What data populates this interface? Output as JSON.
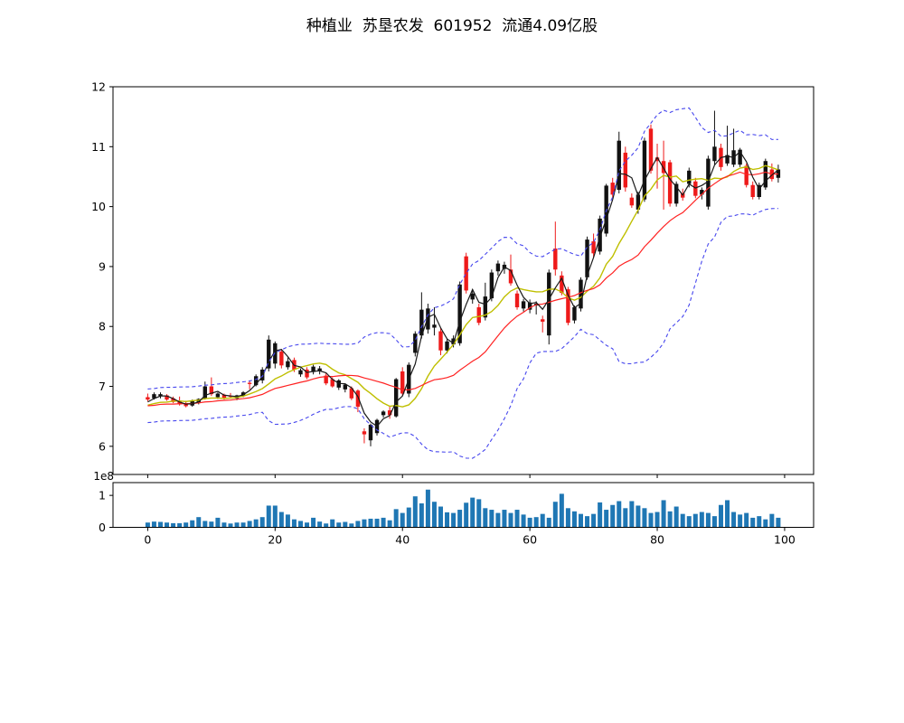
{
  "title": "种植业  苏垦农发  601952  流通4.09亿股",
  "chart_data": {
    "type": "candlestick+volume",
    "title": "种植业  苏垦农发  601952  流通4.09亿股",
    "x_ticks": [
      0,
      20,
      40,
      60,
      80,
      100
    ],
    "y_ticks": [
      6,
      7,
      8,
      9,
      10,
      11,
      12
    ],
    "ylim": [
      5.53,
      12
    ],
    "xlim": [
      -5.45,
      104.55
    ],
    "volume_y_ticks": [
      0,
      1
    ],
    "volume_ylim_1e8": [
      0,
      1.4
    ],
    "volume_offset_label": "1e8",
    "legend_position": "none",
    "grid": false,
    "candle_up_rule": "black body = close >= open, red body = close < open",
    "ohlc": [
      [
        6.82,
        6.88,
        6.75,
        6.78
      ],
      [
        6.8,
        6.9,
        6.78,
        6.87
      ],
      [
        6.84,
        6.9,
        6.8,
        6.87
      ],
      [
        6.85,
        6.87,
        6.76,
        6.78
      ],
      [
        6.8,
        6.83,
        6.72,
        6.74
      ],
      [
        6.76,
        6.83,
        6.68,
        6.7
      ],
      [
        6.72,
        6.76,
        6.65,
        6.67
      ],
      [
        6.68,
        6.78,
        6.66,
        6.76
      ],
      [
        6.72,
        6.8,
        6.7,
        6.79
      ],
      [
        6.8,
        7.08,
        6.78,
        7.0
      ],
      [
        7.0,
        7.15,
        6.84,
        6.87
      ],
      [
        6.82,
        6.9,
        6.79,
        6.88
      ],
      [
        6.86,
        6.88,
        6.78,
        6.81
      ],
      [
        6.84,
        6.89,
        6.8,
        6.83
      ],
      [
        6.8,
        6.86,
        6.77,
        6.85
      ],
      [
        6.84,
        6.92,
        6.82,
        6.9
      ],
      [
        7.06,
        7.1,
        6.95,
        7.04
      ],
      [
        7.02,
        7.2,
        7.0,
        7.17
      ],
      [
        7.1,
        7.32,
        7.05,
        7.28
      ],
      [
        7.3,
        7.85,
        7.25,
        7.78
      ],
      [
        7.38,
        7.75,
        7.3,
        7.72
      ],
      [
        7.58,
        7.62,
        7.3,
        7.35
      ],
      [
        7.32,
        7.48,
        7.28,
        7.42
      ],
      [
        7.44,
        7.48,
        7.24,
        7.28
      ],
      [
        7.2,
        7.3,
        7.16,
        7.27
      ],
      [
        7.28,
        7.32,
        7.12,
        7.15
      ],
      [
        7.24,
        7.36,
        7.2,
        7.33
      ],
      [
        7.25,
        7.34,
        7.2,
        7.3
      ],
      [
        7.18,
        7.22,
        7.02,
        7.05
      ],
      [
        7.12,
        7.15,
        6.98,
        7.0
      ],
      [
        6.98,
        7.12,
        6.94,
        7.1
      ],
      [
        6.95,
        7.05,
        6.9,
        7.03
      ],
      [
        6.97,
        7.0,
        6.77,
        6.8
      ],
      [
        6.93,
        6.95,
        6.57,
        6.66
      ],
      [
        6.25,
        6.3,
        6.05,
        6.2
      ],
      [
        6.1,
        6.38,
        6.0,
        6.36
      ],
      [
        6.22,
        6.46,
        6.18,
        6.44
      ],
      [
        6.52,
        6.6,
        6.48,
        6.58
      ],
      [
        6.6,
        6.66,
        6.46,
        6.52
      ],
      [
        6.5,
        7.14,
        6.48,
        7.12
      ],
      [
        7.25,
        7.32,
        6.84,
        6.88
      ],
      [
        6.88,
        7.4,
        6.82,
        7.36
      ],
      [
        7.56,
        7.92,
        7.5,
        7.88
      ],
      [
        7.85,
        8.57,
        7.8,
        8.28
      ],
      [
        7.95,
        8.38,
        7.88,
        8.3
      ],
      [
        7.98,
        8.32,
        7.85,
        8.03
      ],
      [
        7.92,
        7.98,
        7.52,
        7.6
      ],
      [
        7.6,
        7.8,
        7.55,
        7.75
      ],
      [
        7.7,
        7.85,
        7.65,
        7.8
      ],
      [
        7.72,
        8.75,
        7.68,
        8.7
      ],
      [
        9.17,
        9.23,
        8.55,
        8.6
      ],
      [
        8.45,
        8.62,
        8.38,
        8.55
      ],
      [
        8.32,
        8.38,
        8.02,
        8.06
      ],
      [
        8.15,
        8.73,
        8.1,
        8.5
      ],
      [
        8.47,
        8.95,
        8.42,
        8.9
      ],
      [
        8.92,
        9.1,
        8.85,
        9.05
      ],
      [
        8.96,
        9.08,
        8.88,
        9.03
      ],
      [
        8.95,
        9.2,
        8.68,
        8.72
      ],
      [
        8.55,
        8.6,
        8.28,
        8.32
      ],
      [
        8.3,
        8.46,
        8.25,
        8.42
      ],
      [
        8.28,
        8.45,
        8.22,
        8.4
      ],
      [
        8.35,
        8.42,
        8.2,
        8.38
      ],
      [
        8.12,
        8.18,
        7.9,
        8.08
      ],
      [
        7.85,
        8.95,
        7.7,
        8.9
      ],
      [
        9.3,
        9.75,
        8.85,
        8.95
      ],
      [
        8.85,
        8.92,
        8.52,
        8.56
      ],
      [
        8.62,
        8.66,
        8.02,
        8.06
      ],
      [
        8.1,
        8.35,
        8.05,
        8.32
      ],
      [
        8.3,
        8.82,
        8.25,
        8.78
      ],
      [
        8.82,
        9.5,
        8.78,
        9.45
      ],
      [
        9.42,
        9.55,
        9.15,
        9.22
      ],
      [
        9.25,
        9.85,
        9.2,
        9.8
      ],
      [
        9.55,
        10.38,
        9.5,
        10.35
      ],
      [
        10.4,
        10.48,
        10.15,
        10.2
      ],
      [
        10.28,
        11.25,
        10.22,
        11.1
      ],
      [
        10.9,
        11.0,
        10.25,
        10.32
      ],
      [
        10.15,
        10.22,
        9.98,
        10.02
      ],
      [
        9.95,
        10.25,
        9.88,
        10.2
      ],
      [
        10.12,
        11.15,
        10.08,
        11.1
      ],
      [
        11.3,
        11.37,
        10.55,
        10.6
      ],
      [
        10.82,
        11.05,
        10.3,
        10.76
      ],
      [
        10.76,
        11.1,
        9.95,
        10.56
      ],
      [
        10.74,
        10.78,
        10.0,
        10.05
      ],
      [
        10.05,
        10.42,
        10.0,
        10.38
      ],
      [
        10.22,
        10.3,
        10.1,
        10.15
      ],
      [
        10.38,
        10.65,
        10.32,
        10.6
      ],
      [
        10.42,
        10.48,
        10.14,
        10.18
      ],
      [
        10.2,
        10.32,
        10.12,
        10.28
      ],
      [
        10.0,
        10.85,
        9.95,
        10.8
      ],
      [
        10.76,
        11.6,
        10.7,
        11.0
      ],
      [
        10.98,
        11.05,
        10.6,
        10.66
      ],
      [
        10.72,
        11.35,
        10.68,
        10.86
      ],
      [
        10.7,
        11.3,
        10.66,
        10.94
      ],
      [
        10.7,
        10.98,
        10.66,
        10.95
      ],
      [
        10.68,
        10.72,
        10.32,
        10.36
      ],
      [
        10.36,
        10.42,
        10.12,
        10.16
      ],
      [
        10.16,
        10.4,
        10.12,
        10.36
      ],
      [
        10.32,
        10.8,
        10.28,
        10.76
      ],
      [
        10.62,
        10.72,
        10.42,
        10.46
      ],
      [
        10.48,
        10.7,
        10.4,
        10.62
      ]
    ],
    "volume_1e8": [
      0.15,
      0.18,
      0.17,
      0.15,
      0.13,
      0.13,
      0.15,
      0.22,
      0.32,
      0.2,
      0.18,
      0.3,
      0.15,
      0.12,
      0.15,
      0.15,
      0.2,
      0.25,
      0.32,
      0.68,
      0.68,
      0.48,
      0.4,
      0.25,
      0.2,
      0.15,
      0.3,
      0.18,
      0.12,
      0.25,
      0.15,
      0.17,
      0.12,
      0.2,
      0.25,
      0.27,
      0.27,
      0.3,
      0.22,
      0.57,
      0.45,
      0.62,
      0.97,
      0.75,
      1.18,
      0.8,
      0.65,
      0.47,
      0.45,
      0.55,
      0.77,
      0.93,
      0.88,
      0.6,
      0.55,
      0.45,
      0.55,
      0.45,
      0.55,
      0.4,
      0.3,
      0.32,
      0.42,
      0.3,
      0.8,
      1.05,
      0.6,
      0.5,
      0.42,
      0.35,
      0.42,
      0.78,
      0.55,
      0.7,
      0.82,
      0.6,
      0.82,
      0.68,
      0.6,
      0.45,
      0.48,
      0.85,
      0.5,
      0.65,
      0.42,
      0.35,
      0.42,
      0.48,
      0.45,
      0.35,
      0.7,
      0.85,
      0.48,
      0.4,
      0.45,
      0.3,
      0.35,
      0.25,
      0.42,
      0.3
    ],
    "overlays": {
      "ma_fast_window": 3,
      "ma_mid_window": 10,
      "ma_slow_window": 20,
      "band_window": 20,
      "band_k": 2,
      "band_min_halfwidth": 0.28,
      "seed_prehistory": [
        6.6,
        6.72,
        6.55,
        6.68,
        6.75,
        6.58,
        6.65,
        6.72,
        6.56,
        6.7,
        6.76,
        6.6,
        6.66,
        6.74,
        6.58,
        6.68,
        6.76,
        6.62,
        6.7,
        6.74
      ]
    },
    "colors": {
      "up": "#111111",
      "down": "#ee1a1a",
      "ma_fast": "#1a1a1a",
      "ma_mid": "#bfbf00",
      "ma_slow": "#ff2222",
      "band": "#4747ee",
      "volume": "#1f77b4",
      "axis": "#000000"
    }
  }
}
